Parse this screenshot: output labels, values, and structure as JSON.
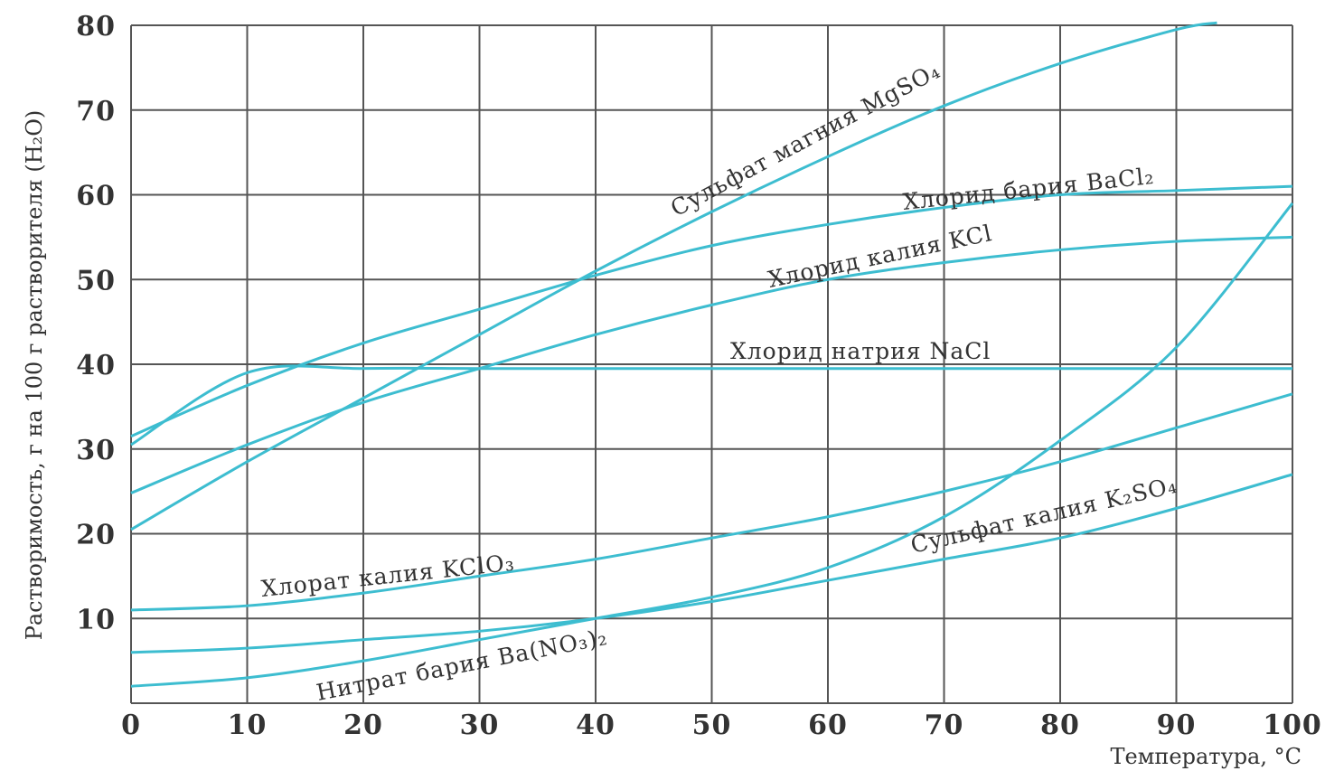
{
  "chart_data": {
    "type": "line",
    "title": "",
    "xlabel": "Температура, °С",
    "ylabel": "Растворимость, г на 100 г растворителя (H₂O)",
    "xlim": [
      0,
      100
    ],
    "ylim": [
      0,
      80
    ],
    "x_ticks": [
      "0",
      "10",
      "20",
      "30",
      "40",
      "50",
      "60",
      "70",
      "80",
      "90",
      "100"
    ],
    "y_ticks": [
      "10",
      "20",
      "30",
      "40",
      "50",
      "60",
      "70",
      "80"
    ],
    "grid": true,
    "line_color": "#3dbdd0",
    "x": [
      0,
      10,
      20,
      30,
      40,
      50,
      60,
      70,
      80,
      90,
      100
    ],
    "series": [
      {
        "name": "Сульфат магния MgSO₄",
        "values": [
          20.5,
          28.5,
          36.0,
          43.5,
          51.0,
          58.0,
          64.5,
          70.5,
          75.5,
          79.5,
          null
        ]
      },
      {
        "name": "Хлорид бария BaCl₂",
        "values": [
          31.5,
          37.5,
          42.5,
          46.5,
          50.5,
          54.0,
          56.5,
          58.5,
          60.0,
          60.5,
          61.0
        ]
      },
      {
        "name": "Хлорид калия KCl",
        "values": [
          24.8,
          30.5,
          35.5,
          39.5,
          43.5,
          47.0,
          50.0,
          52.0,
          53.5,
          54.5,
          55.0
        ]
      },
      {
        "name": "Хлорид натрия NaCl",
        "values": [
          30.5,
          39.0,
          39.5,
          39.5,
          39.5,
          39.5,
          39.5,
          39.5,
          39.5,
          39.5,
          39.5
        ]
      },
      {
        "name": "Хлорат калия KClO₃",
        "values": [
          11.0,
          11.5,
          13.0,
          15.0,
          17.0,
          19.5,
          22.0,
          25.0,
          28.5,
          32.5,
          36.5
        ]
      },
      {
        "name": "Сульфат калия K₂SO₄",
        "values": [
          6.0,
          6.5,
          7.5,
          8.5,
          10.0,
          12.0,
          14.5,
          17.0,
          19.5,
          23.0,
          27.0
        ]
      },
      {
        "name": "Нитрат бария Ba(NO₃)₂",
        "values": [
          2.0,
          3.0,
          5.0,
          7.5,
          10.0,
          12.5,
          16.0,
          22.0,
          31.0,
          42.0,
          59.0
        ]
      }
    ],
    "labels": {
      "mgso4": "Сульфат магния MgSO₄",
      "bacl2": "Хлорид бария BaCl₂",
      "kcl": "Хлорид калия KCl",
      "nacl": "Хлорид натрия NaCl",
      "kclo3": "Хлорат калия KClO₃",
      "k2so4": "Сульфат калия K₂SO₄",
      "bano3": "Нитрат бария Ba(NO₃)₂"
    }
  }
}
